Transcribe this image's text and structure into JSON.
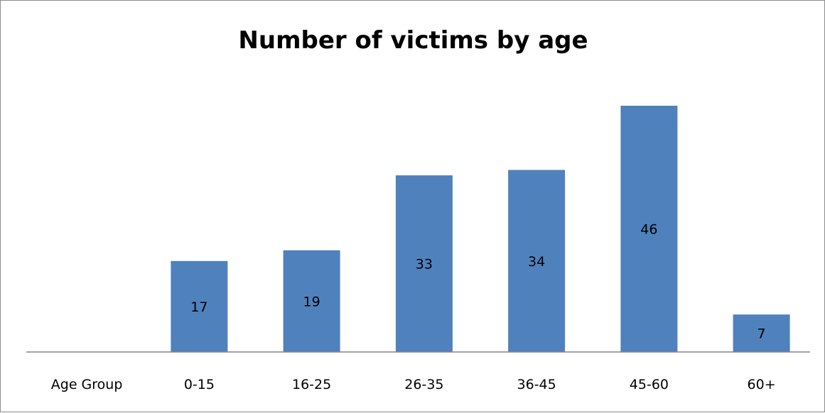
{
  "chart_data": {
    "type": "bar",
    "title": "Number of victims by age",
    "xlabel": "",
    "ylabel": "",
    "categories": [
      "Age Group",
      "0-15",
      "16-25",
      "26-35",
      "36-45",
      "45-60",
      "60+"
    ],
    "values": [
      null,
      17,
      19,
      33,
      34,
      46,
      7
    ],
    "data_labels": [
      "",
      "17",
      "19",
      "33",
      "34",
      "46",
      "7"
    ],
    "ylim": [
      0,
      46
    ],
    "grid": false,
    "legend": "none",
    "bar_color": "#4f81bd",
    "axis_color": "#868686"
  }
}
